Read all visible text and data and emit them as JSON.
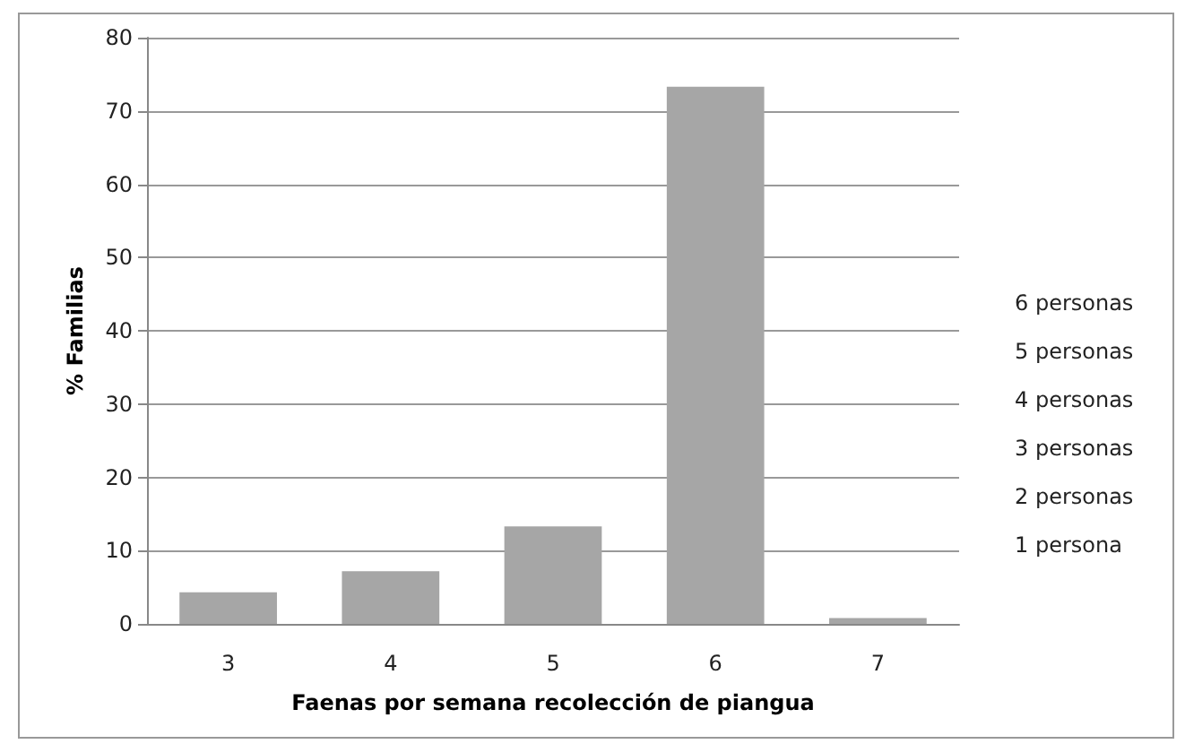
{
  "chart_data": {
    "type": "bar",
    "xlabel": "Faenas por semana recolección de piangua",
    "ylabel": "% Familias",
    "categories": [
      "3",
      "4",
      "5",
      "6",
      "7"
    ],
    "values": [
      4.3,
      7.2,
      13.3,
      73.3,
      0.8
    ],
    "color": "#a6a6a6",
    "ylim": [
      0,
      80
    ],
    "yticks": [
      0,
      10,
      20,
      30,
      40,
      50,
      60,
      70,
      80
    ],
    "grid": "y",
    "annotations": [
      "6 personas",
      "5 personas",
      "4 personas",
      "3 personas",
      "2 personas",
      "1 persona"
    ]
  }
}
